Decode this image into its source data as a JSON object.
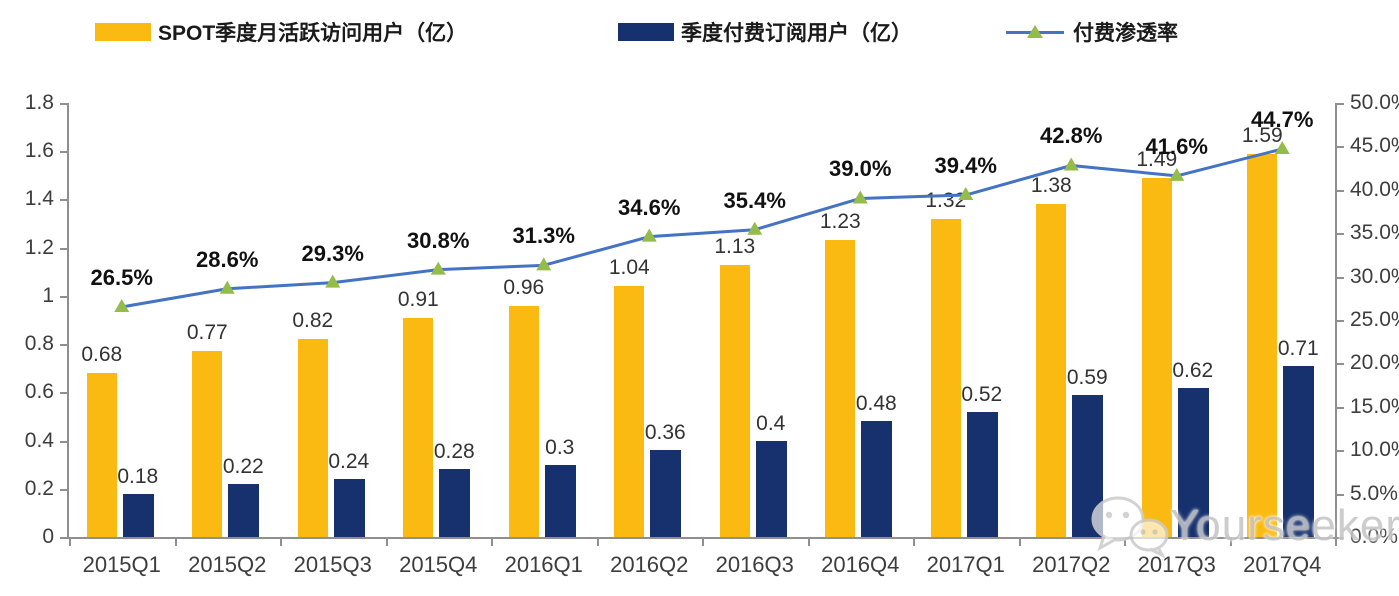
{
  "legend": {
    "mau_label": "SPOT季度月活跃访问用户（亿）",
    "subs_label": "季度付费订阅用户（亿）",
    "penetration_label": "付费渗透率"
  },
  "watermark": {
    "text": "Yourseeker"
  },
  "colors": {
    "mau_bar": "#FBBA12",
    "subs_bar": "#16316D",
    "line": "#4472C4",
    "marker_green": "#94BC4A",
    "axis_gray": "#8F8F8F"
  },
  "chart_data": {
    "type": "bar",
    "subtype": "clustered bars with secondary-axis line (combo)",
    "categories": [
      "2015Q1",
      "2015Q2",
      "2015Q3",
      "2015Q4",
      "2016Q1",
      "2016Q2",
      "2016Q3",
      "2016Q4",
      "2017Q1",
      "2017Q2",
      "2017Q3",
      "2017Q4"
    ],
    "series": [
      {
        "name": "SPOT季度月活跃访问用户（亿）",
        "type": "bar",
        "axis": "left",
        "color": "#FBBA12",
        "values": [
          0.68,
          0.77,
          0.82,
          0.91,
          0.96,
          1.04,
          1.13,
          1.23,
          1.32,
          1.38,
          1.49,
          1.59
        ],
        "labels": [
          "0.68",
          "0.77",
          "0.82",
          "0.91",
          "0.96",
          "1.04",
          "1.13",
          "1.23",
          "1.32",
          "1.38",
          "1.49",
          "1.59"
        ]
      },
      {
        "name": "季度付费订阅用户（亿）",
        "type": "bar",
        "axis": "left",
        "color": "#16316D",
        "values": [
          0.18,
          0.22,
          0.24,
          0.28,
          0.3,
          0.36,
          0.4,
          0.48,
          0.52,
          0.59,
          0.62,
          0.71
        ],
        "labels": [
          "0.18",
          "0.22",
          "0.24",
          "0.28",
          "0.3",
          "0.36",
          "0.4",
          "0.48",
          "0.52",
          "0.59",
          "0.62",
          "0.71"
        ]
      },
      {
        "name": "付费渗透率",
        "type": "line",
        "axis": "right",
        "color": "#4472C4",
        "marker": "triangle-up",
        "marker_color": "#94BC4A",
        "values": [
          26.5,
          28.6,
          29.3,
          30.8,
          31.3,
          34.6,
          35.4,
          39.0,
          39.4,
          42.8,
          41.6,
          44.7
        ],
        "labels": [
          "26.5%",
          "28.6%",
          "29.3%",
          "30.8%",
          "31.3%",
          "34.6%",
          "35.4%",
          "39.0%",
          "39.4%",
          "42.8%",
          "41.6%",
          "44.7%"
        ]
      }
    ],
    "left_axis": {
      "min": 0,
      "max": 1.8,
      "step": 0.2,
      "tick_labels": [
        "0",
        "0.2",
        "0.4",
        "0.6",
        "0.8",
        "1",
        "1.2",
        "1.4",
        "1.6",
        "1.8"
      ]
    },
    "right_axis": {
      "min": 0,
      "max": 50,
      "step": 5,
      "tick_labels": [
        "0.0%",
        "5.0%",
        "10.0%",
        "15.0%",
        "20.0%",
        "25.0%",
        "30.0%",
        "35.0%",
        "40.0%",
        "45.0%",
        "50.0%"
      ]
    },
    "grid": false,
    "legend_position": "top"
  }
}
